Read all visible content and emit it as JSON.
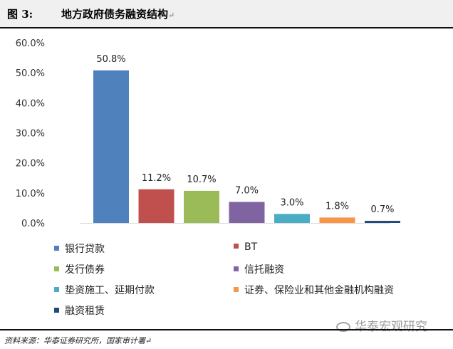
{
  "header": {
    "figure_no": "图 3:",
    "title": "地方政府债务融资结构",
    "para_mark": "↵"
  },
  "chart_data": {
    "type": "bar",
    "categories": [
      "银行贷款",
      "BT",
      "发行债券",
      "信托融资",
      "垫资施工、延期付款",
      "证券、保险业和其他金融机构融资",
      "融资租赁"
    ],
    "values": [
      50.8,
      11.2,
      10.7,
      7.0,
      3.0,
      1.8,
      0.7
    ],
    "value_labels": [
      "50.8%",
      "11.2%",
      "10.7%",
      "7.0%",
      "3.0%",
      "1.8%",
      "0.7%"
    ],
    "colors": [
      "#4f81bd",
      "#c0504d",
      "#9bbb59",
      "#8064a2",
      "#4bacc6",
      "#f79646",
      "#1f497d"
    ],
    "ylim": [
      0,
      60
    ],
    "yticks": [
      "0.0%",
      "10.0%",
      "20.0%",
      "30.0%",
      "40.0%",
      "50.0%",
      "60.0%"
    ],
    "grid": false,
    "legend_position": "bottom"
  },
  "footer": {
    "source": "资料来源：华泰证券研究所，国家审计署↵"
  },
  "watermark": {
    "text": "华泰宏观研究",
    "icon": "wechat-icon"
  }
}
